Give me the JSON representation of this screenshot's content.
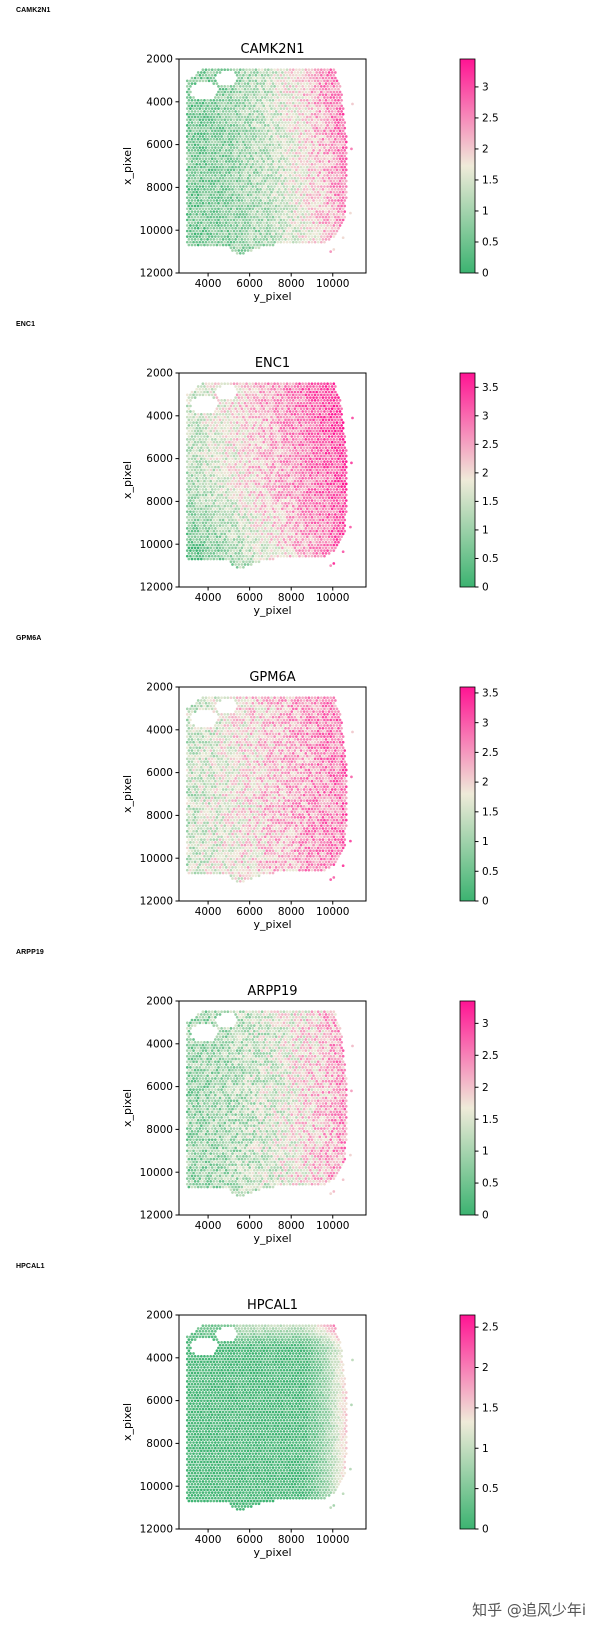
{
  "watermark": "知乎 @追风少年i",
  "colormap": {
    "low": "#3cb371",
    "mid": "#efebd9",
    "high": "#ff1493"
  },
  "chart_data": [
    {
      "type": "scatter",
      "gene": "CAMK2N1",
      "title": "CAMK2N1",
      "xlabel": "y_pixel",
      "ylabel": "x_pixel",
      "xlim": [
        2600,
        11600
      ],
      "ylim": [
        12000,
        2000
      ],
      "xticks": [
        4000,
        6000,
        8000,
        10000
      ],
      "yticks": [
        2000,
        4000,
        6000,
        8000,
        10000,
        12000
      ],
      "color_range": [
        0,
        3.45
      ],
      "colorbar_ticks": [
        "0",
        "0.5",
        "1",
        "1.5",
        "2",
        "2.5",
        "3"
      ],
      "colorbar_values": [
        0,
        0.5,
        1,
        1.5,
        2,
        2.5,
        3
      ],
      "pattern": "right-high"
    },
    {
      "type": "scatter",
      "gene": "ENC1",
      "title": "ENC1",
      "xlabel": "y_pixel",
      "ylabel": "x_pixel",
      "xlim": [
        2600,
        11600
      ],
      "ylim": [
        12000,
        2000
      ],
      "xticks": [
        4000,
        6000,
        8000,
        10000
      ],
      "yticks": [
        2000,
        4000,
        6000,
        8000,
        10000,
        12000
      ],
      "color_range": [
        0,
        3.75
      ],
      "colorbar_ticks": [
        "0",
        "0.5",
        "1",
        "1.5",
        "2",
        "2.5",
        "3",
        "3.5"
      ],
      "colorbar_values": [
        0,
        0.5,
        1,
        1.5,
        2,
        2.5,
        3,
        3.5
      ],
      "pattern": "right-high-lowerleft-low"
    },
    {
      "type": "scatter",
      "gene": "GPM6A",
      "title": "GPM6A",
      "xlabel": "y_pixel",
      "ylabel": "x_pixel",
      "xlim": [
        2600,
        11600
      ],
      "ylim": [
        12000,
        2000
      ],
      "xticks": [
        4000,
        6000,
        8000,
        10000
      ],
      "yticks": [
        2000,
        4000,
        6000,
        8000,
        10000,
        12000
      ],
      "color_range": [
        0,
        3.6
      ],
      "colorbar_ticks": [
        "0",
        "0.5",
        "1",
        "1.5",
        "2",
        "2.5",
        "3",
        "3.5"
      ],
      "colorbar_values": [
        0,
        0.5,
        1,
        1.5,
        2,
        2.5,
        3,
        3.5
      ],
      "pattern": "broad-high"
    },
    {
      "type": "scatter",
      "gene": "ARPP19",
      "title": "ARPP19",
      "xlabel": "y_pixel",
      "ylabel": "x_pixel",
      "xlim": [
        2600,
        11600
      ],
      "ylim": [
        12000,
        2000
      ],
      "xticks": [
        4000,
        6000,
        8000,
        10000
      ],
      "yticks": [
        2000,
        4000,
        6000,
        8000,
        10000,
        12000
      ],
      "color_range": [
        0,
        3.35
      ],
      "colorbar_ticks": [
        "0",
        "0.5",
        "1",
        "1.5",
        "2",
        "2.5",
        "3"
      ],
      "colorbar_values": [
        0,
        0.5,
        1,
        1.5,
        2,
        2.5,
        3
      ],
      "pattern": "mixed-right"
    },
    {
      "type": "scatter",
      "gene": "HPCAL1",
      "title": "HPCAL1",
      "xlabel": "y_pixel",
      "ylabel": "x_pixel",
      "xlim": [
        2600,
        11600
      ],
      "ylim": [
        12000,
        2000
      ],
      "xticks": [
        4000,
        6000,
        8000,
        10000
      ],
      "yticks": [
        2000,
        4000,
        6000,
        8000,
        10000,
        12000
      ],
      "color_range": [
        0,
        2.65
      ],
      "colorbar_ticks": [
        "0",
        "0.5",
        "1",
        "1.5",
        "2",
        "2.5"
      ],
      "colorbar_values": [
        0,
        0.5,
        1,
        1.5,
        2,
        2.5
      ],
      "pattern": "low-edge-high"
    }
  ]
}
